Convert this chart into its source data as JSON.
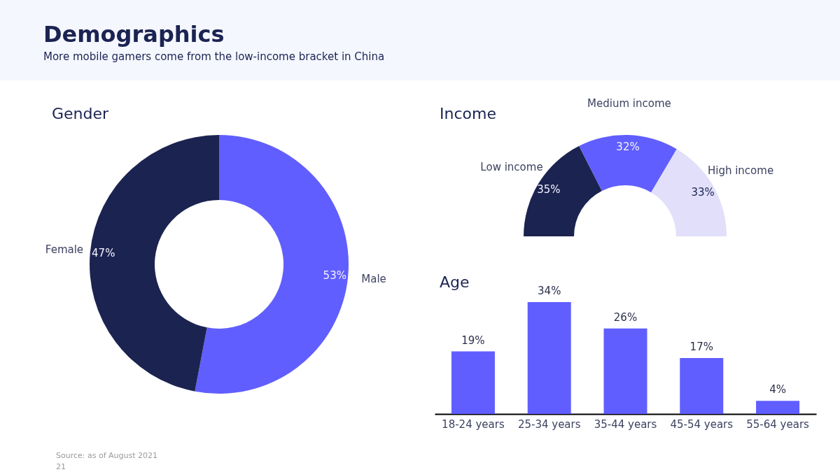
{
  "chart_data": [
    {
      "type": "other",
      "title": "Demographics",
      "subtitle": "More mobile gamers come from the low-income bracket in China",
      "annotations": [
        "Source: as of August 2021",
        "21"
      ]
    },
    {
      "type": "donut",
      "title": "Gender",
      "categories": [
        "Male",
        "Female"
      ],
      "values": [
        53,
        47
      ],
      "colors": [
        "#615eff",
        "#1b2350"
      ],
      "value_labels": [
        "53%",
        "47%"
      ]
    },
    {
      "type": "donut",
      "title": "Income",
      "categories": [
        "Low income",
        "Medium income",
        "High income"
      ],
      "values": [
        35,
        32,
        33
      ],
      "colors": [
        "#1b2350",
        "#615eff",
        "#e1dffa"
      ],
      "value_labels": [
        "35%",
        "32%",
        "33%"
      ]
    },
    {
      "type": "bar",
      "title": "Age",
      "categories": [
        "18-24 years",
        "25-34 years",
        "35-44 years",
        "45-54 years",
        "55-64 years"
      ],
      "values": [
        19,
        34,
        26,
        17,
        4
      ],
      "color": "#615eff",
      "value_labels": [
        "19%",
        "34%",
        "26%",
        "17%",
        "4%"
      ]
    }
  ]
}
